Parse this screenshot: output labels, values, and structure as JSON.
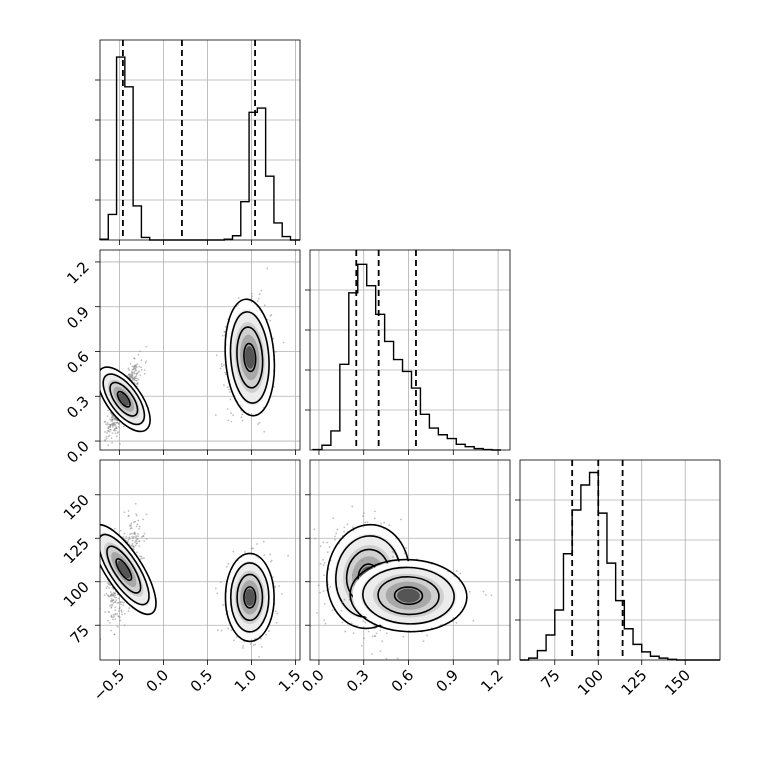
{
  "chart_data": {
    "type": "corner",
    "grid": true,
    "parameters": [
      "",
      "",
      ""
    ],
    "ranges": {
      "p0": [
        -0.72,
        1.55
      ],
      "p1": [
        -0.06,
        1.28
      ],
      "p2": [
        55,
        170
      ]
    },
    "ticks": {
      "p0": {
        "values": [
          -0.5,
          0.0,
          0.5,
          1.0,
          1.5
        ],
        "labels": [
          "−0.5",
          "0.0",
          "0.5",
          "1.0",
          "1.5"
        ]
      },
      "p1": {
        "values": [
          0.0,
          0.3,
          0.6,
          0.9,
          1.2
        ],
        "labels": [
          "0.0",
          "0.3",
          "0.6",
          "0.9",
          "1.2"
        ]
      },
      "p2": {
        "values": [
          75,
          100,
          125,
          150
        ],
        "labels": [
          "75",
          "100",
          "125",
          "150"
        ]
      }
    },
    "marginals": {
      "p0": {
        "bin_edges": [
          -0.72,
          -0.626,
          -0.532,
          -0.438,
          -0.344,
          -0.25,
          -0.156,
          -0.062,
          0.032,
          0.126,
          0.22,
          0.314,
          0.408,
          0.502,
          0.596,
          0.69,
          0.784,
          0.878,
          0.972,
          1.066,
          1.16,
          1.254,
          1.348,
          1.442,
          1.55
        ],
        "counts": [
          2,
          60,
          430,
          360,
          80,
          6,
          0,
          0,
          0,
          0,
          0,
          0,
          0,
          0,
          0,
          2,
          10,
          90,
          300,
          310,
          150,
          40,
          8,
          0
        ],
        "quantiles": [
          -0.46,
          0.21,
          1.04
        ],
        "ymax": 470
      },
      "p1": {
        "bin_edges": [
          -0.04,
          0.02,
          0.08,
          0.14,
          0.2,
          0.26,
          0.32,
          0.38,
          0.44,
          0.5,
          0.56,
          0.62,
          0.68,
          0.74,
          0.8,
          0.86,
          0.92,
          0.98,
          1.04,
          1.1,
          1.16,
          1.22
        ],
        "counts": [
          1,
          10,
          40,
          180,
          330,
          390,
          345,
          285,
          228,
          190,
          165,
          130,
          75,
          46,
          32,
          24,
          12,
          7,
          3,
          1,
          0
        ],
        "quantiles": [
          0.25,
          0.4,
          0.65
        ],
        "ymax": 420
      },
      "p2": {
        "bin_edges": [
          55,
          60,
          65,
          70,
          75,
          80,
          85,
          90,
          95,
          100,
          105,
          110,
          115,
          120,
          125,
          130,
          135,
          140,
          145,
          150,
          155,
          160,
          165,
          170
        ],
        "counts": [
          0,
          3,
          15,
          40,
          80,
          170,
          240,
          280,
          300,
          235,
          155,
          95,
          50,
          25,
          13,
          6,
          3,
          1,
          0,
          0,
          0,
          0,
          0
        ],
        "quantiles": [
          85,
          100,
          114
        ],
        "ymax": 320
      }
    },
    "joints": [
      {
        "x": "p0",
        "y": "p1",
        "clusters": [
          {
            "x": -0.45,
            "y": 0.28,
            "sx": 0.085,
            "sy": 0.11,
            "rho": 0.8,
            "n": 650
          },
          {
            "x": 0.98,
            "y": 0.56,
            "sx": 0.12,
            "sy": 0.17,
            "rho": 0.05,
            "n": 750
          }
        ]
      },
      {
        "x": "p0",
        "y": "p2",
        "clusters": [
          {
            "x": -0.45,
            "y": 107,
            "sx": 0.09,
            "sy": 13,
            "rho": 0.5,
            "n": 650
          },
          {
            "x": 0.98,
            "y": 91,
            "sx": 0.12,
            "sy": 11,
            "rho": 0.0,
            "n": 750
          }
        ]
      },
      {
        "x": "p1",
        "y": "p2",
        "clusters": [
          {
            "x": 0.33,
            "y": 103,
            "sx": 0.12,
            "sy": 13,
            "rho": -0.15,
            "n": 800
          },
          {
            "x": 0.6,
            "y": 92,
            "sx": 0.17,
            "sy": 9,
            "rho": -0.1,
            "n": 600
          }
        ]
      }
    ]
  }
}
